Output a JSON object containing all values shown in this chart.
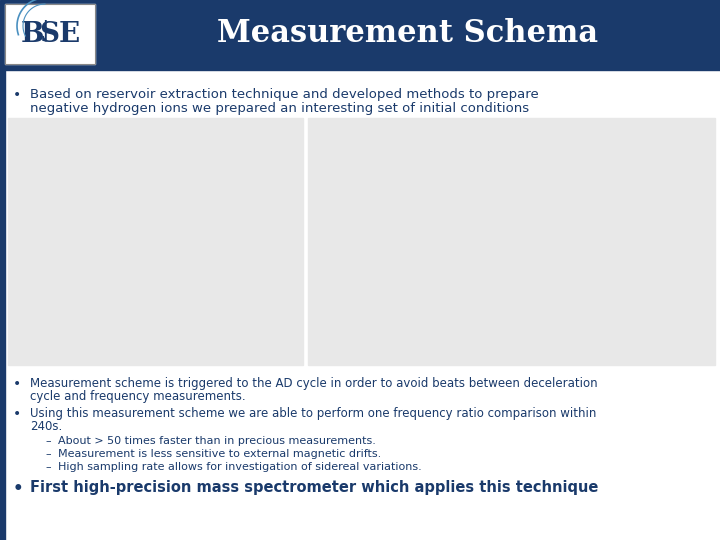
{
  "title": "Measurement Schema",
  "title_color": "#1a3a6b",
  "title_fontsize": 22,
  "background_color": "#ffffff",
  "header_bar_color": "#1a3a6b",
  "left_bar_color": "#1a3a6b",
  "bullet1_line1": "Based on reservoir extraction technique and developed methods to prepare",
  "bullet1_line2": "negative hydrogen ions we prepared an interesting set of initial conditions",
  "bullet2_line1": "Measurement scheme is triggered to the AD cycle in order to avoid beats between deceleration",
  "bullet2_line2": "cycle and frequency measurements.",
  "bullet3_line1": "Using this measurement scheme we are able to perform one frequency ratio comparison within",
  "bullet3_line2": "240s.",
  "sub1": "About > 50 times faster than in precious measurements.",
  "sub2": "Measurement is less sensitive to external magnetic drifts.",
  "sub3": "High sampling rate allows for investigation of sidereal variations.",
  "bullet4": "First high-precision mass spectrometer which applies this technique",
  "text_color": "#1a3a6b",
  "text_fontsize": 8.5,
  "sub_fontsize": 8.0,
  "bullet4_fontsize": 10.5,
  "bullet1_fontsize": 9.5
}
